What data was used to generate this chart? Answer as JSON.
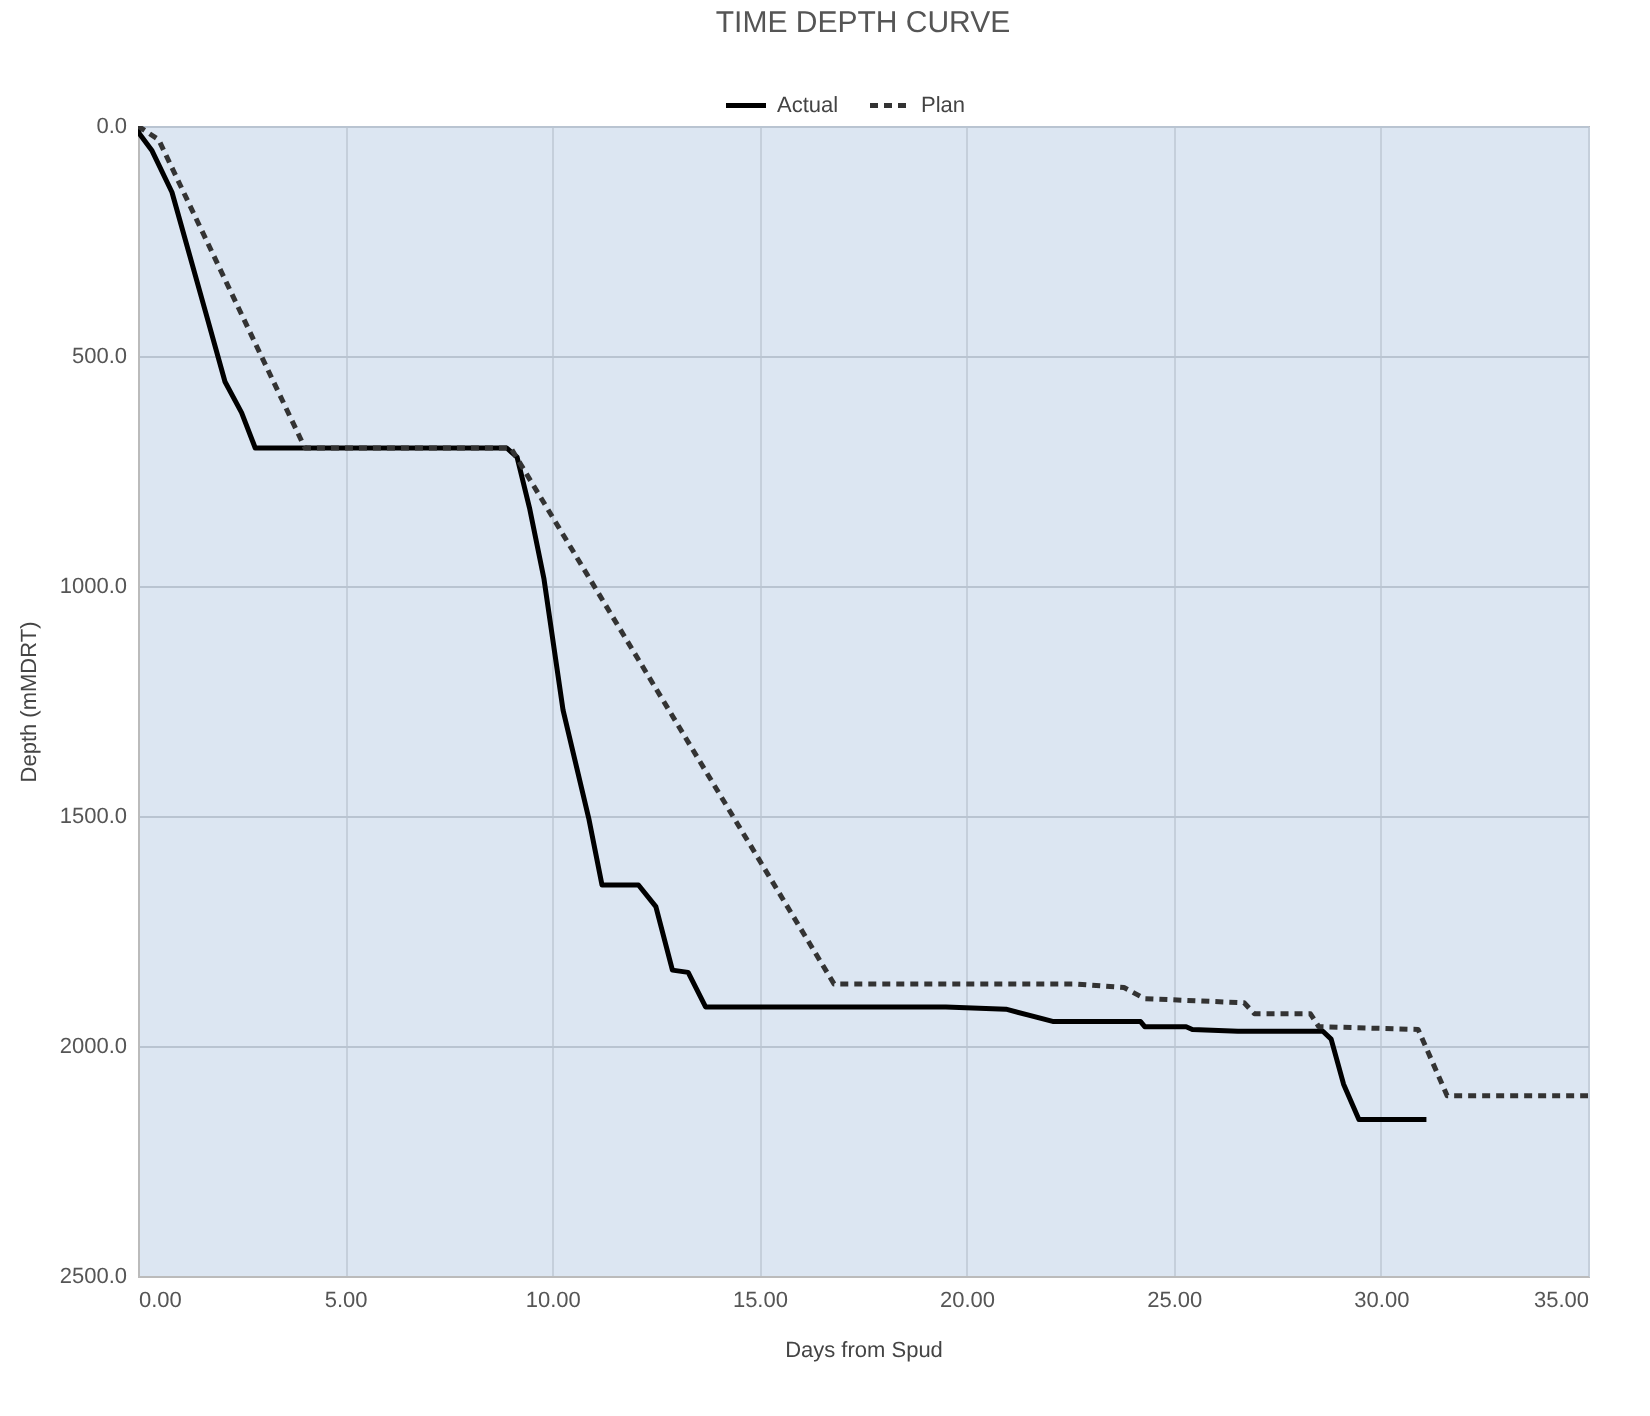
{
  "chart_data": {
    "type": "line",
    "title": "TIME DEPTH CURVE",
    "xlabel": "Days from Spud",
    "ylabel": "Depth (mMDRT)",
    "xlim": [
      0,
      35
    ],
    "xticks": [
      {
        "value": 0,
        "label": "0.00"
      },
      {
        "value": 5,
        "label": "5.00"
      },
      {
        "value": 10,
        "label": "10.00"
      },
      {
        "value": 15,
        "label": "15.00"
      },
      {
        "value": 20,
        "label": "20.00"
      },
      {
        "value": 25,
        "label": "25.00"
      },
      {
        "value": 30,
        "label": "30.00"
      },
      {
        "value": 35,
        "label": "35.00"
      }
    ],
    "ylim": [
      2500,
      0
    ],
    "yticks": [
      {
        "value": 0,
        "label": "0.0"
      },
      {
        "value": 500,
        "label": "500.0"
      },
      {
        "value": 1000,
        "label": "1000.0"
      },
      {
        "value": 1500,
        "label": "1500.0"
      },
      {
        "value": 2000,
        "label": "2000.0"
      },
      {
        "value": 2500,
        "label": "2500.0"
      }
    ],
    "grid": true,
    "legend": "top",
    "marker": "none",
    "series": [
      {
        "name": "Actual",
        "color": "#000000",
        "line_style": "solid",
        "x": [
          0,
          0.03,
          0.34,
          0.82,
          1.63,
          2.1,
          2.5,
          2.83,
          8.9,
          9.15,
          9.45,
          9.8,
          10.26,
          10.88,
          11.2,
          12.08,
          12.5,
          12.9,
          13.28,
          13.7,
          19.5,
          20.95,
          22.1,
          24.2,
          24.3,
          25.3,
          25.45,
          26.55,
          28.6,
          28.8,
          29.1,
          29.47,
          31.1
        ],
        "values": [
          0,
          16,
          54,
          144,
          404,
          556,
          623,
          700,
          700,
          720,
          830,
          985,
          1270,
          1505,
          1650,
          1650,
          1697,
          1835,
          1840,
          1915,
          1915,
          1920,
          1947,
          1947,
          1958,
          1958,
          1964,
          1968,
          1968,
          1985,
          2083,
          2160,
          2160
        ]
      },
      {
        "name": "Plan",
        "color": "#333333",
        "line_style": "dashed",
        "x": [
          0,
          0.5,
          4.03,
          9.0,
          16.8,
          22.6,
          23.8,
          24.3,
          26.7,
          26.95,
          28.3,
          28.5,
          30.9,
          31.6,
          35
        ],
        "values": [
          0,
          30,
          700,
          700,
          1865,
          1865,
          1873,
          1897,
          1906,
          1930,
          1930,
          1958,
          1964,
          2108,
          2108
        ]
      }
    ]
  }
}
